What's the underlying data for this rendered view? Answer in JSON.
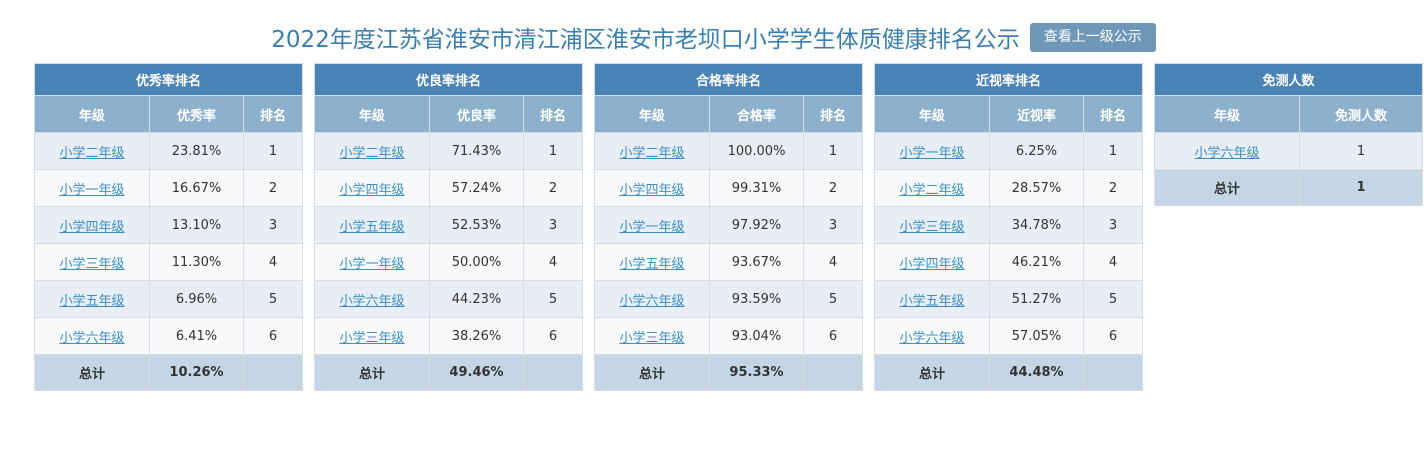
{
  "header": {
    "title": "2022年度江苏省淮安市清江浦区淮安市老坝口小学学生体质健康排名公示",
    "parent_button": "查看上一级公示"
  },
  "tables": [
    {
      "caption": "优秀率排名",
      "columns": [
        "年级",
        "优秀率",
        "排名"
      ],
      "rows": [
        [
          "小学二年级",
          "23.81%",
          "1"
        ],
        [
          "小学一年级",
          "16.67%",
          "2"
        ],
        [
          "小学四年级",
          "13.10%",
          "3"
        ],
        [
          "小学三年级",
          "11.30%",
          "4"
        ],
        [
          "小学五年级",
          "6.96%",
          "5"
        ],
        [
          "小学六年级",
          "6.41%",
          "6"
        ]
      ],
      "total": [
        "总计",
        "10.26%",
        ""
      ]
    },
    {
      "caption": "优良率排名",
      "columns": [
        "年级",
        "优良率",
        "排名"
      ],
      "rows": [
        [
          "小学二年级",
          "71.43%",
          "1"
        ],
        [
          "小学四年级",
          "57.24%",
          "2"
        ],
        [
          "小学五年级",
          "52.53%",
          "3"
        ],
        [
          "小学一年级",
          "50.00%",
          "4"
        ],
        [
          "小学六年级",
          "44.23%",
          "5"
        ],
        [
          "小学三年级",
          "38.26%",
          "6"
        ]
      ],
      "total": [
        "总计",
        "49.46%",
        ""
      ]
    },
    {
      "caption": "合格率排名",
      "columns": [
        "年级",
        "合格率",
        "排名"
      ],
      "rows": [
        [
          "小学二年级",
          "100.00%",
          "1"
        ],
        [
          "小学四年级",
          "99.31%",
          "2"
        ],
        [
          "小学一年级",
          "97.92%",
          "3"
        ],
        [
          "小学五年级",
          "93.67%",
          "4"
        ],
        [
          "小学六年级",
          "93.59%",
          "5"
        ],
        [
          "小学三年级",
          "93.04%",
          "6"
        ]
      ],
      "total": [
        "总计",
        "95.33%",
        ""
      ]
    },
    {
      "caption": "近视率排名",
      "columns": [
        "年级",
        "近视率",
        "排名"
      ],
      "rows": [
        [
          "小学一年级",
          "6.25%",
          "1"
        ],
        [
          "小学二年级",
          "28.57%",
          "2"
        ],
        [
          "小学三年级",
          "34.78%",
          "3"
        ],
        [
          "小学四年级",
          "46.21%",
          "4"
        ],
        [
          "小学五年级",
          "51.27%",
          "5"
        ],
        [
          "小学六年级",
          "57.05%",
          "6"
        ]
      ],
      "total": [
        "总计",
        "44.48%",
        ""
      ]
    },
    {
      "caption": "免测人数",
      "columns": [
        "年级",
        "免测人数"
      ],
      "rows": [
        [
          "小学六年级",
          "1"
        ]
      ],
      "total": [
        "总计",
        "1"
      ]
    }
  ]
}
